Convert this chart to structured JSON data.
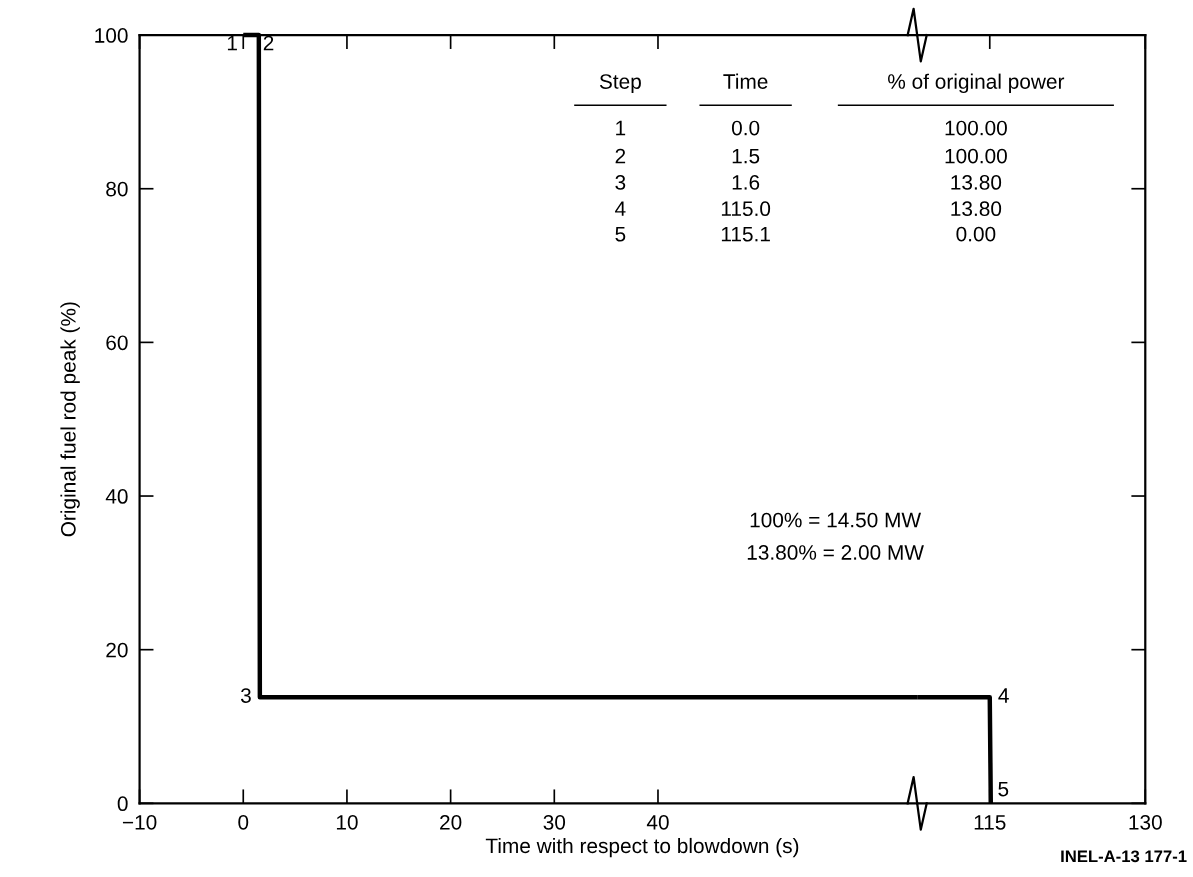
{
  "chart_data": [
    {
      "type": "line",
      "xlabel": "Time with respect to blowdown (s)",
      "ylabel": "Original fuel rod peak (%)",
      "x": [
        0.0,
        1.5,
        1.6,
        65.0
      ],
      "series": [
        {
          "color": "#000000",
          "values": [
            100.0,
            100.0,
            13.8,
            13.8
          ]
        }
      ],
      "xlim": [
        -10,
        65
      ],
      "xticks": [
        {
          "value": -10,
          "label": "−10"
        },
        0,
        10,
        20,
        30,
        40
      ],
      "ylim": [
        0,
        100
      ],
      "yticks": [
        0,
        20,
        40,
        60,
        80,
        100
      ],
      "grid": false,
      "legend": false,
      "marker": "none",
      "line_style": "solid",
      "annotations": [
        {
          "text": "1",
          "x": 0.0,
          "y": 100.0
        },
        {
          "text": "2",
          "x": 1.5,
          "y": 100.0
        },
        {
          "text": "3",
          "x": 1.6,
          "y": 13.8
        },
        "Step",
        "Time",
        "% of original power",
        "1",
        "0.0",
        "100.00",
        "2",
        "1.5",
        "100.00",
        "3",
        "1.6",
        "13.80",
        "4",
        "115.0",
        "13.80",
        "5",
        "115.1",
        "0.00",
        "100% = 14.50 MW",
        "13.80% = 2.00 MW",
        "INEL-A-13 177-1"
      ]
    },
    {
      "type": "line",
      "x": [
        108.0,
        115.0,
        115.1
      ],
      "series": [
        {
          "color": "#000000",
          "values": [
            13.8,
            13.8,
            0.0
          ]
        }
      ],
      "xlim": [
        108,
        130
      ],
      "xticks": [
        115,
        130
      ],
      "ylim": [
        0,
        100
      ],
      "yticks": [
        0,
        20,
        40,
        60,
        80,
        100
      ],
      "tick_labels": "x",
      "grid": false,
      "legend": false,
      "marker": "none",
      "line_style": "solid",
      "annotations": [
        {
          "text": "4",
          "x": 115.0,
          "y": 13.8
        },
        {
          "text": "5",
          "x": 115.1,
          "y": 0.0
        }
      ]
    }
  ]
}
